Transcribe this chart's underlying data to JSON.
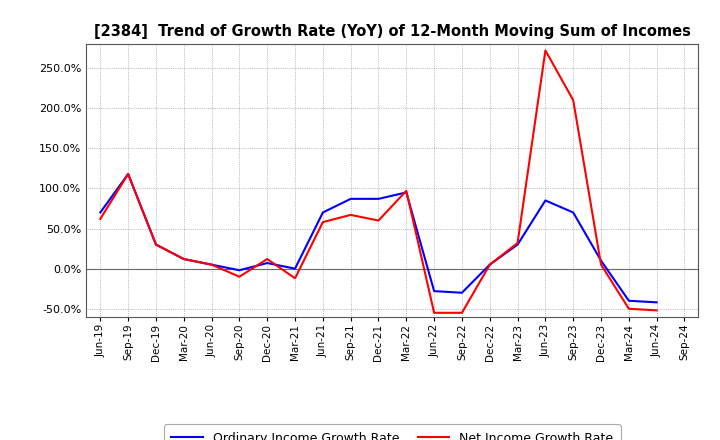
{
  "title": "[2384]  Trend of Growth Rate (YoY) of 12-Month Moving Sum of Incomes",
  "x_labels": [
    "Jun-19",
    "Sep-19",
    "Dec-19",
    "Mar-20",
    "Jun-20",
    "Sep-20",
    "Dec-20",
    "Mar-21",
    "Jun-21",
    "Sep-21",
    "Dec-21",
    "Mar-22",
    "Jun-22",
    "Sep-22",
    "Dec-22",
    "Mar-23",
    "Jun-23",
    "Sep-23",
    "Dec-23",
    "Mar-24",
    "Jun-24",
    "Sep-24"
  ],
  "ordinary_income": [
    0.7,
    1.18,
    0.3,
    0.12,
    0.05,
    -0.02,
    0.07,
    0.0,
    0.7,
    0.87,
    0.87,
    0.95,
    -0.28,
    -0.3,
    0.05,
    0.3,
    0.85,
    0.7,
    0.1,
    -0.4,
    -0.42,
    null
  ],
  "net_income": [
    0.62,
    1.18,
    0.3,
    0.12,
    0.05,
    -0.1,
    0.12,
    -0.12,
    0.58,
    0.67,
    0.6,
    0.97,
    -0.55,
    -0.55,
    0.05,
    0.32,
    2.72,
    2.1,
    0.05,
    -0.5,
    -0.52,
    null
  ],
  "ordinary_color": "#0000ff",
  "net_color": "#ff0000",
  "ylim_low": -0.6,
  "ylim_high": 2.8,
  "yticks": [
    -0.5,
    0.0,
    0.5,
    1.0,
    1.5,
    2.0,
    2.5
  ],
  "bg_color": "#ffffff",
  "plot_bg_color": "#ffffff",
  "grid_color": "#888888",
  "legend_labels": [
    "Ordinary Income Growth Rate",
    "Net Income Growth Rate"
  ]
}
